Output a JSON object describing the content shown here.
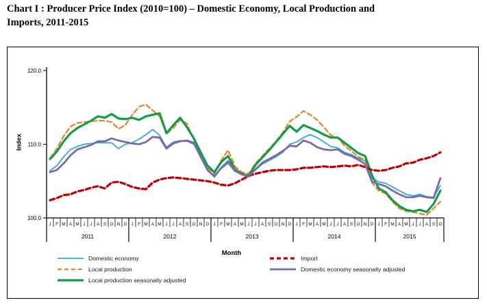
{
  "page": {
    "title": "Chart I : Producer Price Index (2010=100) –  Domestic Economy, Local Production and\nImports, 2011-2015"
  },
  "chart_data": {
    "type": "line",
    "xlabel": "Month",
    "ylabel": "Index",
    "ylim": [
      100.0,
      120.0
    ],
    "yticks": [
      "100.0",
      "110.0",
      "120.0"
    ],
    "grid": false,
    "legend_position": "bottom",
    "years": [
      {
        "label": "2011",
        "count": 12
      },
      {
        "label": "2012",
        "count": 12
      },
      {
        "label": "2013",
        "count": 12
      },
      {
        "label": "2014",
        "count": 12
      },
      {
        "label": "2015",
        "count": 10
      }
    ],
    "categories": [
      "J",
      "F",
      "M",
      "A",
      "M",
      "J",
      "J",
      "A",
      "S",
      "O",
      "N",
      "D",
      "J",
      "F",
      "M",
      "A",
      "M",
      "J",
      "J",
      "A",
      "S",
      "O",
      "N",
      "D",
      "J",
      "F",
      "M",
      "A",
      "M",
      "J",
      "J",
      "A",
      "S",
      "O",
      "N",
      "D",
      "J",
      "F",
      "M",
      "A",
      "M",
      "J",
      "J",
      "A",
      "S",
      "O",
      "N",
      "D",
      "J",
      "F",
      "M",
      "A",
      "M",
      "J",
      "J",
      "A",
      "S",
      "O"
    ],
    "series": [
      {
        "name": "Domestic economy",
        "color": "#2FA9DF",
        "style": "solid",
        "stroke_width": 1.8,
        "values": [
          106.4,
          107.1,
          108.3,
          109.3,
          109.7,
          110.0,
          110.1,
          110.2,
          110.2,
          110.2,
          109.4,
          110.0,
          110.2,
          110.7,
          111.3,
          112.0,
          111.2,
          109.6,
          110.3,
          110.5,
          110.4,
          110.0,
          108.2,
          106.4,
          105.8,
          106.7,
          107.4,
          106.3,
          106.0,
          105.7,
          106.5,
          107.3,
          107.8,
          108.3,
          108.9,
          110.0,
          110.3,
          110.9,
          111.3,
          110.9,
          110.3,
          109.7,
          109.5,
          108.9,
          108.6,
          108.1,
          107.7,
          105.3,
          104.9,
          104.7,
          104.2,
          103.7,
          103.2,
          103.0,
          103.2,
          102.9,
          102.8,
          104.4
        ]
      },
      {
        "name": "Local production",
        "color": "#F07F23",
        "style": "dashed",
        "stroke_width": 2.2,
        "values": [
          108.1,
          109.4,
          111.1,
          112.4,
          112.9,
          113.0,
          113.1,
          113.2,
          113.2,
          113.0,
          112.1,
          112.6,
          114.0,
          115.1,
          115.4,
          114.6,
          113.8,
          111.4,
          112.2,
          113.3,
          112.8,
          110.6,
          108.4,
          106.8,
          106.0,
          107.8,
          109.2,
          107.0,
          106.2,
          106.0,
          107.4,
          108.4,
          109.4,
          110.4,
          111.6,
          113.1,
          113.7,
          114.5,
          114.0,
          113.3,
          112.3,
          111.2,
          110.9,
          109.8,
          109.1,
          108.3,
          107.9,
          104.8,
          103.7,
          103.3,
          102.2,
          101.3,
          100.9,
          100.8,
          100.6,
          100.4,
          101.3,
          102.2
        ]
      },
      {
        "name": "Local production seasonally adjusted",
        "color": "#109D49",
        "style": "solid",
        "stroke_width": 3.2,
        "values": [
          108.0,
          109.0,
          110.4,
          111.5,
          112.2,
          112.7,
          113.2,
          113.8,
          113.6,
          114.1,
          113.5,
          113.4,
          113.6,
          113.3,
          113.8,
          114.0,
          114.2,
          111.5,
          112.6,
          113.6,
          112.3,
          110.8,
          108.9,
          107.1,
          106.2,
          107.6,
          108.4,
          106.6,
          106.0,
          105.7,
          107.2,
          108.2,
          109.2,
          110.3,
          111.4,
          112.5,
          111.7,
          112.6,
          112.2,
          111.8,
          111.3,
          110.9,
          110.9,
          110.2,
          109.5,
          108.8,
          108.4,
          105.8,
          104.0,
          103.5,
          102.4,
          101.6,
          101.1,
          100.9,
          101.1,
          100.8,
          101.9,
          103.7
        ]
      },
      {
        "name": "Import",
        "color": "#C00000",
        "style": "dashed",
        "stroke_width": 3.2,
        "values": [
          102.4,
          102.7,
          103.1,
          103.2,
          103.6,
          103.8,
          104.1,
          104.3,
          104.0,
          104.8,
          104.9,
          104.6,
          104.2,
          104.0,
          103.9,
          104.8,
          105.2,
          105.4,
          105.5,
          105.4,
          105.3,
          105.2,
          105.1,
          105.0,
          104.8,
          104.5,
          104.4,
          104.7,
          105.2,
          105.7,
          106.0,
          106.2,
          106.4,
          106.5,
          106.5,
          106.5,
          106.6,
          106.8,
          106.8,
          106.9,
          107.0,
          106.9,
          107.0,
          107.1,
          107.0,
          107.2,
          106.9,
          106.5,
          106.4,
          106.5,
          106.8,
          107.0,
          107.4,
          107.5,
          107.9,
          108.1,
          108.4,
          108.9
        ]
      },
      {
        "name": "Domestic economy seasonally adjusted",
        "color": "#7F68A8",
        "style": "solid",
        "stroke_width": 2.8,
        "values": [
          106.2,
          106.5,
          107.4,
          108.5,
          109.3,
          109.6,
          109.9,
          110.4,
          110.4,
          110.8,
          110.5,
          110.3,
          110.1,
          110.0,
          110.3,
          111.0,
          110.9,
          109.4,
          110.1,
          110.4,
          110.5,
          110.2,
          108.3,
          106.5,
          105.6,
          106.8,
          107.7,
          106.4,
          105.9,
          105.6,
          106.6,
          107.5,
          108.0,
          108.5,
          109.1,
          109.8,
          109.7,
          110.5,
          110.2,
          109.6,
          109.3,
          109.2,
          109.3,
          108.7,
          108.4,
          107.9,
          107.3,
          104.9,
          104.6,
          104.3,
          103.7,
          103.2,
          102.8,
          102.8,
          103.0,
          102.8,
          102.7,
          105.4
        ]
      }
    ],
    "legend": {
      "columns": [
        [
          0,
          1,
          2
        ],
        [
          3,
          4
        ]
      ]
    }
  }
}
